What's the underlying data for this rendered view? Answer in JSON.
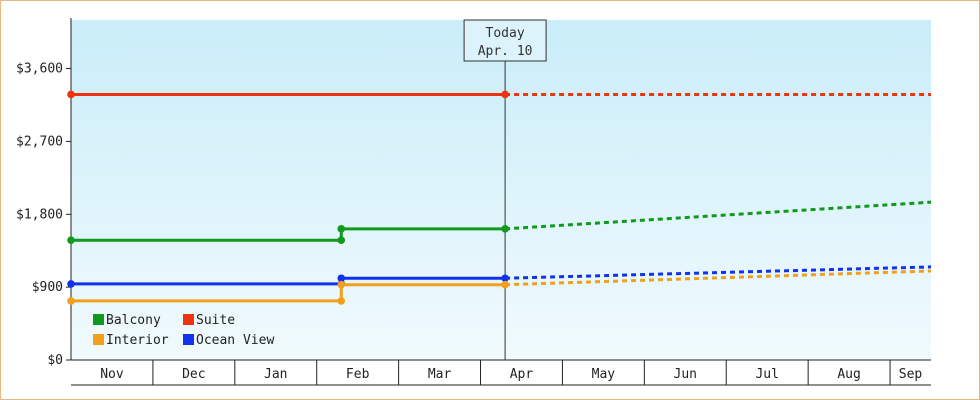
{
  "chart_data": {
    "type": "line",
    "y_ticks": [
      "$0",
      "$900",
      "$1,800",
      "$2,700",
      "$3,600"
    ],
    "y_tick_values": [
      0,
      900,
      1800,
      2700,
      3600
    ],
    "ylim": [
      0,
      4200
    ],
    "x_labels": [
      "Nov",
      "Dec",
      "Jan",
      "Feb",
      "Mar",
      "Apr",
      "May",
      "Jun",
      "Jul",
      "Aug",
      "Sep"
    ],
    "x_boundaries": [
      0,
      1,
      2,
      3,
      4,
      5,
      6,
      7,
      8,
      9,
      10,
      10.5
    ],
    "today": {
      "title": "Today",
      "date": "Apr. 10",
      "x": 5.3
    },
    "series": [
      {
        "name": "Suite",
        "color": "#ee3311",
        "actual": [
          [
            0,
            3280
          ],
          [
            5.3,
            3280
          ]
        ],
        "markers": [
          0,
          5.3
        ],
        "forecast": [
          [
            5.3,
            3280
          ],
          [
            10.5,
            3280
          ]
        ]
      },
      {
        "name": "Balcony",
        "color": "#11991d",
        "actual": [
          [
            0,
            1480
          ],
          [
            3.3,
            1480
          ],
          [
            3.3,
            1620
          ],
          [
            5.3,
            1620
          ]
        ],
        "markers": [
          0,
          3.3,
          3.3,
          5.3
        ],
        "forecast": [
          [
            5.3,
            1620
          ],
          [
            10.5,
            1950
          ]
        ]
      },
      {
        "name": "Ocean View",
        "color": "#1133ee",
        "actual": [
          [
            0,
            940
          ],
          [
            3.3,
            940
          ],
          [
            3.3,
            1010
          ],
          [
            5.3,
            1010
          ]
        ],
        "markers": [
          0,
          3.3,
          3.3,
          5.3
        ],
        "forecast": [
          [
            5.3,
            1010
          ],
          [
            10.5,
            1150
          ]
        ]
      },
      {
        "name": "Interior",
        "color": "#f2a01b",
        "actual": [
          [
            0,
            730
          ],
          [
            3.3,
            730
          ],
          [
            3.3,
            930
          ],
          [
            5.3,
            930
          ]
        ],
        "markers": [
          0,
          3.3,
          3.3,
          5.3
        ],
        "forecast": [
          [
            5.3,
            930
          ],
          [
            10.5,
            1100
          ]
        ]
      }
    ],
    "legend": {
      "placement": "bottom-left",
      "rows": [
        [
          "Balcony",
          "Suite"
        ],
        [
          "Interior",
          "Ocean View"
        ]
      ]
    },
    "grid": false
  }
}
